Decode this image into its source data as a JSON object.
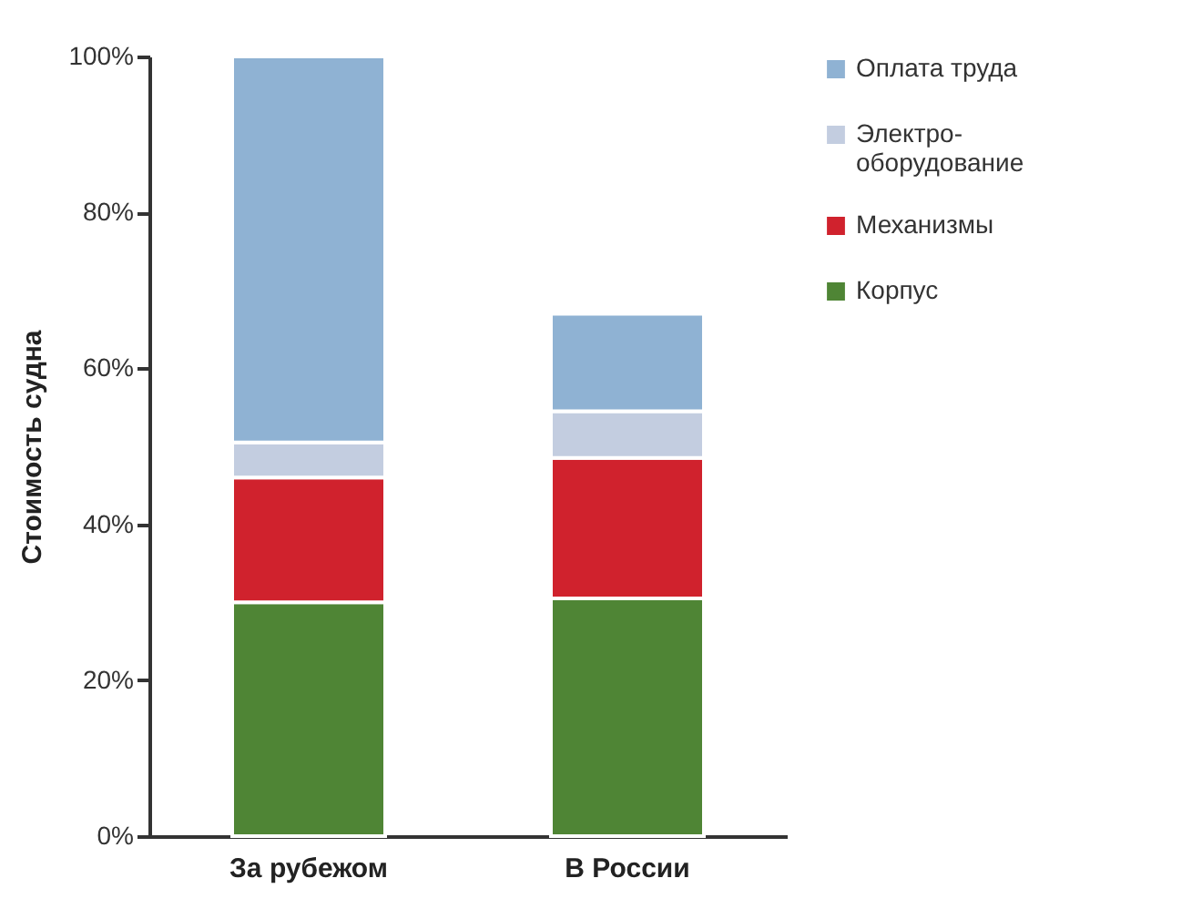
{
  "chart_data": {
    "type": "bar",
    "stacked": true,
    "categories": [
      "За рубежом",
      "В России"
    ],
    "ylabel": "Стоимость судна",
    "series": [
      {
        "name": "Корпус",
        "color": "#4f8535",
        "values": [
          30,
          30.5
        ]
      },
      {
        "name": "Механизмы",
        "color": "#d0222d",
        "values": [
          16,
          18
        ]
      },
      {
        "name": "Электро-\nоборудование",
        "color": "#c3cde0",
        "values": [
          4.5,
          6
        ]
      },
      {
        "name": "Оплата труда",
        "color": "#8fb2d3",
        "values": [
          49.5,
          12.5
        ]
      }
    ],
    "ylim": [
      0,
      100
    ],
    "yticks": [
      {
        "value": 0,
        "label": "0%"
      },
      {
        "value": 20,
        "label": "20%"
      },
      {
        "value": 40,
        "label": "40%"
      },
      {
        "value": 60,
        "label": "60%"
      },
      {
        "value": 80,
        "label": "80%"
      },
      {
        "value": 100,
        "label": "100%"
      }
    ],
    "grid": false,
    "legend": "top right"
  }
}
